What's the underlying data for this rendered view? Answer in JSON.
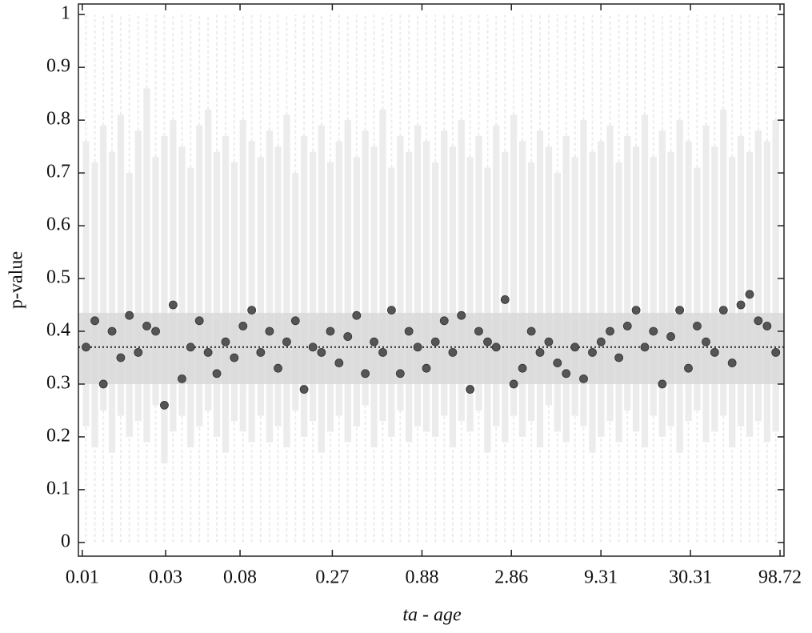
{
  "chart_data": {
    "type": "scatter",
    "xlabel": "ta - age",
    "ylabel": "p-value",
    "xscale": "log",
    "xlim": [
      0.0095,
      104
    ],
    "ylim": [
      -0.026,
      1.02
    ],
    "xticks": [
      0.01,
      0.03,
      0.08,
      0.27,
      0.88,
      2.86,
      9.31,
      30.31,
      98.72
    ],
    "yticks": [
      0,
      0.1,
      0.2,
      0.3,
      0.4,
      0.5,
      0.6,
      0.7,
      0.8,
      0.9,
      1
    ],
    "band": [
      0.3,
      0.435
    ],
    "mean": 0.37,
    "whiskers": [
      0,
      1
    ],
    "color": "#555555",
    "band_color": "#d9d9d9",
    "bar_color": "#ececec",
    "x": [
      0.0105,
      0.0118,
      0.0132,
      0.0148,
      0.0166,
      0.0186,
      0.0209,
      0.0234,
      0.0263,
      0.0295,
      0.0331,
      0.0372,
      0.0417,
      0.0468,
      0.0525,
      0.0589,
      0.0661,
      0.0741,
      0.0832,
      0.0933,
      0.105,
      0.118,
      0.132,
      0.148,
      0.166,
      0.186,
      0.209,
      0.234,
      0.263,
      0.295,
      0.331,
      0.372,
      0.417,
      0.468,
      0.525,
      0.589,
      0.661,
      0.741,
      0.832,
      0.933,
      1.05,
      1.18,
      1.32,
      1.48,
      1.66,
      1.86,
      2.09,
      2.34,
      2.63,
      2.95,
      3.31,
      3.72,
      4.17,
      4.68,
      5.25,
      5.89,
      6.61,
      7.41,
      8.32,
      9.33,
      10.5,
      11.8,
      13.2,
      14.8,
      16.6,
      18.6,
      20.9,
      23.4,
      26.3,
      29.5,
      33.1,
      37.2,
      41.7,
      46.8,
      52.5,
      58.9,
      66.1,
      74.1,
      83.2,
      93.3
    ],
    "values": [
      0.37,
      0.42,
      0.3,
      0.4,
      0.35,
      0.43,
      0.36,
      0.41,
      0.4,
      0.26,
      0.45,
      0.31,
      0.37,
      0.42,
      0.36,
      0.32,
      0.38,
      0.35,
      0.41,
      0.44,
      0.36,
      0.4,
      0.33,
      0.38,
      0.42,
      0.29,
      0.37,
      0.36,
      0.4,
      0.34,
      0.39,
      0.43,
      0.32,
      0.38,
      0.36,
      0.44,
      0.32,
      0.4,
      0.37,
      0.33,
      0.38,
      0.42,
      0.36,
      0.43,
      0.29,
      0.4,
      0.38,
      0.37,
      0.46,
      0.3,
      0.33,
      0.4,
      0.36,
      0.38,
      0.34,
      0.32,
      0.37,
      0.31,
      0.36,
      0.38,
      0.4,
      0.35,
      0.41,
      0.44,
      0.37,
      0.4,
      0.3,
      0.39,
      0.44,
      0.33,
      0.41,
      0.38,
      0.36,
      0.44,
      0.34,
      0.45,
      0.47,
      0.42,
      0.41,
      0.36
    ],
    "low": [
      0.22,
      0.18,
      0.25,
      0.17,
      0.24,
      0.2,
      0.23,
      0.19,
      0.26,
      0.15,
      0.21,
      0.24,
      0.18,
      0.22,
      0.25,
      0.2,
      0.17,
      0.23,
      0.21,
      0.19,
      0.24,
      0.19,
      0.22,
      0.18,
      0.25,
      0.2,
      0.23,
      0.17,
      0.21,
      0.24,
      0.19,
      0.22,
      0.26,
      0.18,
      0.23,
      0.2,
      0.25,
      0.19,
      0.22,
      0.21,
      0.2,
      0.24,
      0.18,
      0.23,
      0.21,
      0.25,
      0.17,
      0.22,
      0.19,
      0.24,
      0.2,
      0.23,
      0.18,
      0.26,
      0.21,
      0.19,
      0.24,
      0.22,
      0.17,
      0.2,
      0.23,
      0.19,
      0.25,
      0.21,
      0.18,
      0.24,
      0.2,
      0.22,
      0.17,
      0.23,
      0.25,
      0.19,
      0.21,
      0.24,
      0.18,
      0.22,
      0.2,
      0.23,
      0.19,
      0.21
    ],
    "high": [
      0.76,
      0.72,
      0.79,
      0.74,
      0.81,
      0.7,
      0.78,
      0.86,
      0.73,
      0.77,
      0.8,
      0.75,
      0.71,
      0.79,
      0.82,
      0.74,
      0.77,
      0.72,
      0.8,
      0.76,
      0.73,
      0.78,
      0.75,
      0.81,
      0.7,
      0.77,
      0.74,
      0.79,
      0.72,
      0.76,
      0.8,
      0.73,
      0.78,
      0.75,
      0.82,
      0.71,
      0.77,
      0.74,
      0.79,
      0.76,
      0.72,
      0.78,
      0.75,
      0.8,
      0.73,
      0.77,
      0.71,
      0.79,
      0.74,
      0.81,
      0.76,
      0.72,
      0.78,
      0.75,
      0.7,
      0.77,
      0.73,
      0.8,
      0.74,
      0.76,
      0.79,
      0.72,
      0.77,
      0.75,
      0.81,
      0.73,
      0.78,
      0.74,
      0.8,
      0.76,
      0.71,
      0.79,
      0.75,
      0.82,
      0.73,
      0.77,
      0.74,
      0.78,
      0.76,
      0.8
    ]
  }
}
